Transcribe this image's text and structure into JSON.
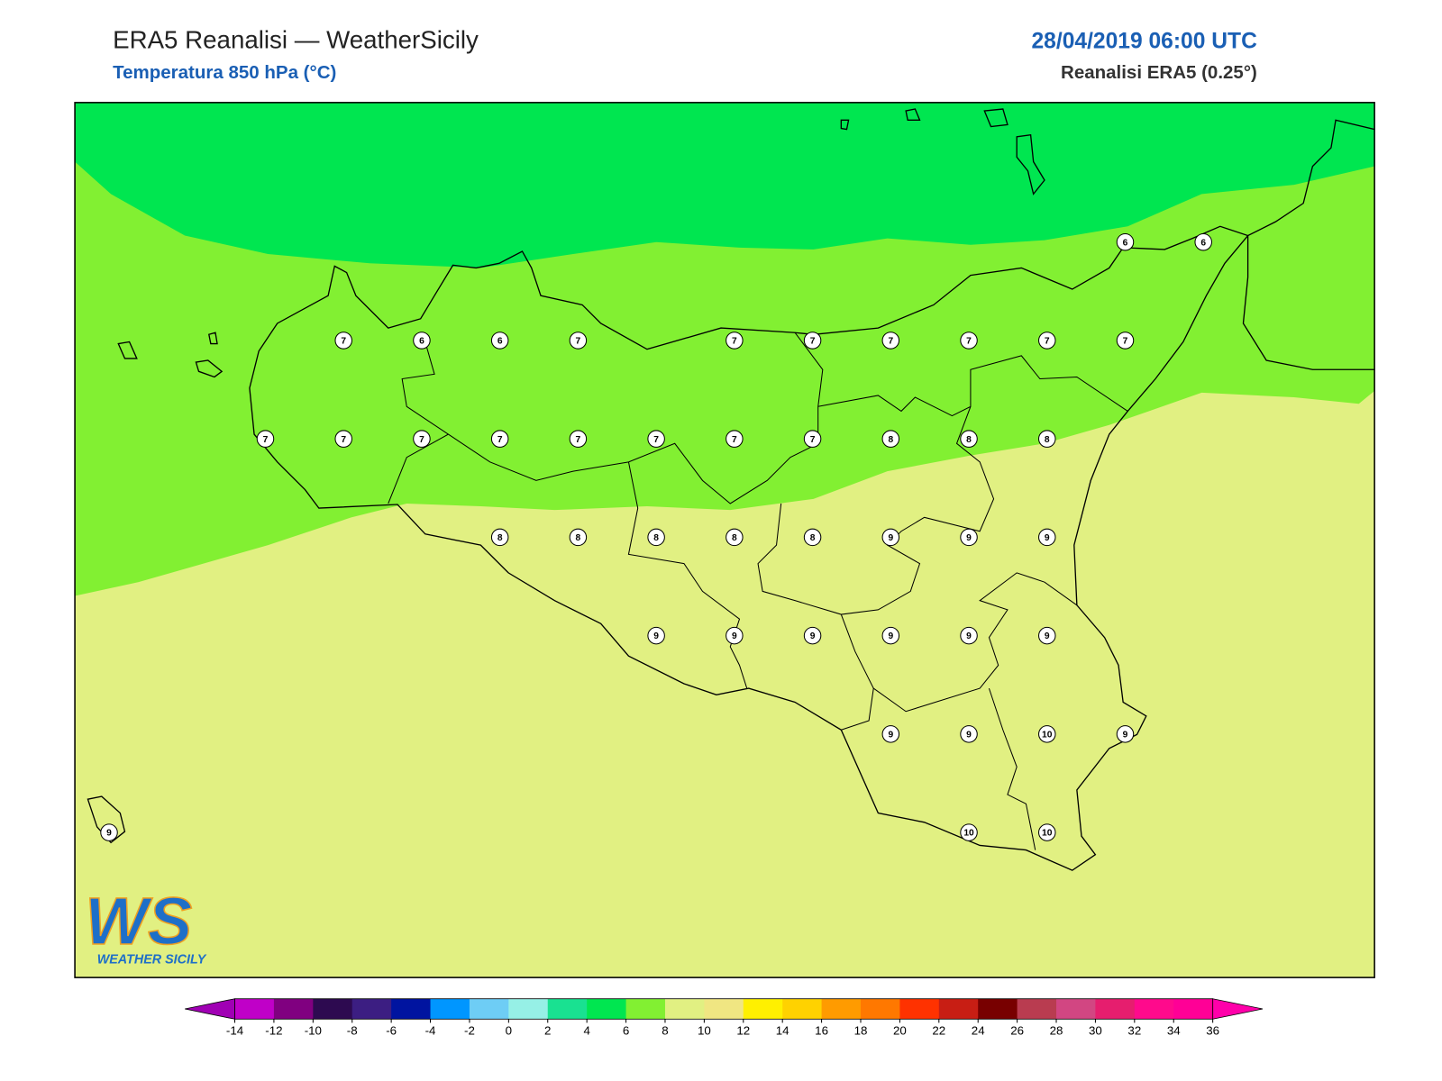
{
  "header": {
    "title": "ERA5 Reanalisi — WeatherSicily",
    "subtitle": "Temperatura 850 hPa (°C)",
    "datetime": "28/04/2019 06:00 UTC",
    "source": "Reanalisi ERA5 (0.25°)"
  },
  "logo": {
    "mark": "WS",
    "caption": "WEATHER SICILY"
  },
  "grid_labels": [
    [
      null,
      null,
      null,
      null,
      null,
      null,
      null,
      null,
      null,
      null,
      null,
      null,
      null,
      6,
      6
    ],
    [
      null,
      null,
      null,
      7,
      6,
      6,
      7,
      null,
      7,
      7,
      7,
      7,
      7,
      7,
      null
    ],
    [
      null,
      null,
      7,
      7,
      7,
      7,
      7,
      7,
      7,
      7,
      8,
      8,
      8,
      null,
      null
    ],
    [
      null,
      null,
      null,
      null,
      null,
      8,
      8,
      8,
      8,
      8,
      9,
      9,
      9,
      null,
      null
    ],
    [
      null,
      null,
      null,
      null,
      null,
      null,
      null,
      9,
      9,
      9,
      9,
      9,
      9,
      null,
      null
    ],
    [
      null,
      null,
      null,
      null,
      null,
      null,
      null,
      null,
      null,
      null,
      9,
      9,
      10,
      9,
      null
    ],
    [
      9,
      null,
      null,
      null,
      null,
      null,
      null,
      null,
      null,
      null,
      null,
      10,
      10,
      null,
      null
    ]
  ],
  "colorbar": {
    "ticks": [
      -14,
      -12,
      -10,
      -8,
      -6,
      -4,
      -2,
      0,
      2,
      4,
      6,
      8,
      10,
      12,
      14,
      16,
      18,
      20,
      22,
      24,
      26,
      28,
      30,
      32,
      34,
      36
    ],
    "colors": [
      "#c000c8",
      "#800080",
      "#2d0a50",
      "#3c1e82",
      "#0014a0",
      "#0096ff",
      "#6ecdf5",
      "#96f0e6",
      "#19e191",
      "#00e650",
      "#82f032",
      "#e1f082",
      "#f0e682",
      "#fff000",
      "#ffd200",
      "#ff9b00",
      "#ff7800",
      "#ff3200",
      "#c81e14",
      "#780000",
      "#b93c50",
      "#d24682",
      "#e61e6e",
      "#ff0a8c",
      "#ff0096"
    ],
    "under": "#a000b4",
    "over": "#ff00aa"
  }
}
